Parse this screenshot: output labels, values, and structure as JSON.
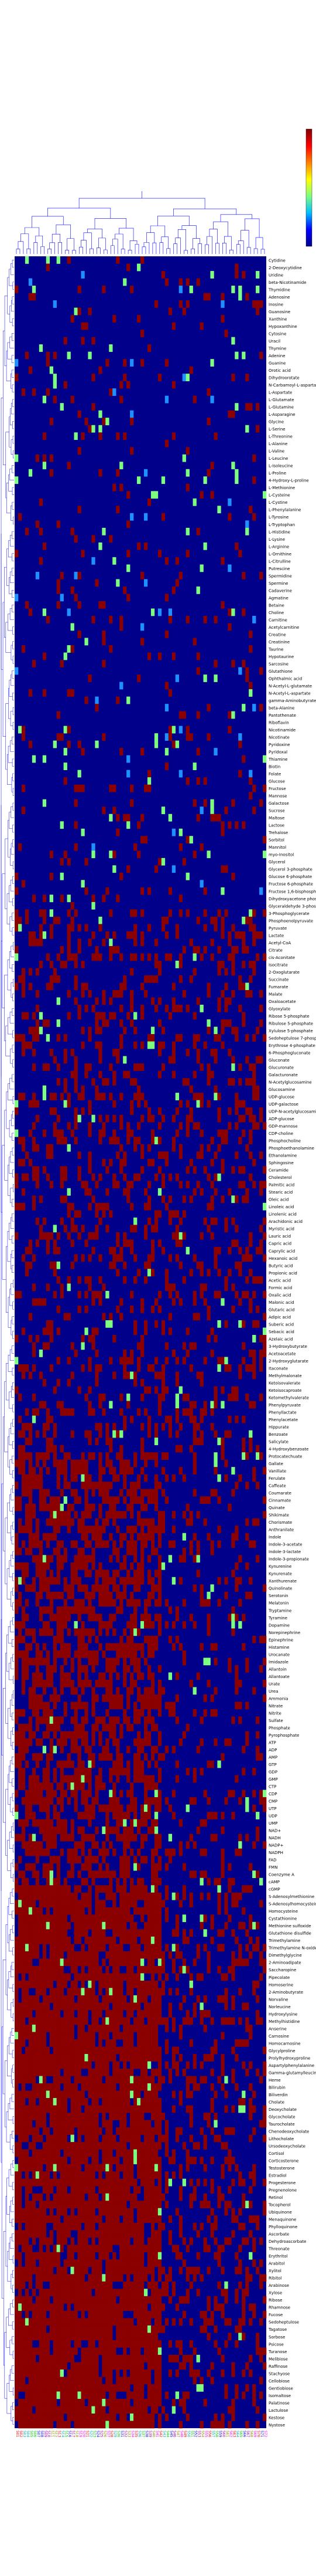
{
  "chart_data": {
    "type": "heatmap",
    "title": "",
    "xlabel": "",
    "ylabel": "",
    "colorscale": [
      "#00008b",
      "#0000ff",
      "#00bfff",
      "#7fff7f",
      "#ffff00",
      "#ff8000",
      "#ff0000",
      "#800000"
    ],
    "colorbar_range": [
      0,
      1
    ],
    "cell_colors": {
      "absent": "#00008b",
      "present": "#8b0000",
      "low": "#1e90ff",
      "mid": "#7fff7f"
    },
    "column_label_colors": [
      "#ff0000",
      "#00aaaa",
      "#00cc00",
      "#0000ff",
      "#aa00aa",
      "#888800",
      "#ff00ff"
    ],
    "row_labels": [
      "Cytidine",
      "2-Deoxycytidine",
      "Uridine",
      "beta-Nicotinamide",
      "Thymidine",
      "Adenosine",
      "Inosine",
      "Guanosine",
      "Xanthine",
      "Hypoxanthine",
      "Cytosine",
      "Uracil",
      "Thymine",
      "Adenine",
      "Guanine",
      "Orotic acid",
      "Dihydroorotate",
      "N-Carbamoyl-L-aspartate",
      "L-Aspartate",
      "L-Glutamate",
      "L-Glutamine",
      "L-Asparagine",
      "Glycine",
      "L-Serine",
      "L-Threonine",
      "L-Alanine",
      "L-Valine",
      "L-Leucine",
      "L-Isoleucine",
      "L-Proline",
      "4-Hydroxy-L-proline",
      "L-Methionine",
      "L-Cysteine",
      "L-Cystine",
      "L-Phenylalanine",
      "L-Tyrosine",
      "L-Tryptophan",
      "L-Histidine",
      "L-Lysine",
      "L-Arginine",
      "L-Ornithine",
      "L-Citrulline",
      "Putrescine",
      "Spermidine",
      "Spermine",
      "Cadaverine",
      "Agmatine",
      "Betaine",
      "Choline",
      "Carnitine",
      "Acetylcarnitine",
      "Creatine",
      "Creatinine",
      "Taurine",
      "Hypotaurine",
      "Sarcosine",
      "Glutathione",
      "Ophthalmic acid",
      "N-Acetyl-L-glutamate",
      "N-Acetyl-L-aspartate",
      "gamma-Aminobutyrate",
      "beta-Alanine",
      "Pantothenate",
      "Riboflavin",
      "Nicotinamide",
      "Nicotinate",
      "Pyridoxine",
      "Pyridoxal",
      "Thiamine",
      "Biotin",
      "Folate",
      "Glucose",
      "Fructose",
      "Mannose",
      "Galactose",
      "Sucrose",
      "Maltose",
      "Lactose",
      "Trehalose",
      "Sorbitol",
      "Mannitol",
      "myo-Inositol",
      "Glycerol",
      "Glycerol 3-phosphate",
      "Glucose 6-phosphate",
      "Fructose 6-phosphate",
      "Fructose 1,6-bisphosphate",
      "Dihydroxyacetone phosphate",
      "Glyceraldehyde 3-phosphate",
      "3-Phosphoglycerate",
      "Phosphoenolpyruvate",
      "Pyruvate",
      "Lactate",
      "Acetyl-CoA",
      "Citrate",
      "cis-Aconitate",
      "Isocitrate",
      "2-Oxoglutarate",
      "Succinate",
      "Fumarate",
      "Malate",
      "Oxaloacetate",
      "Glyoxylate",
      "Ribose 5-phosphate",
      "Ribulose 5-phosphate",
      "Xylulose 5-phosphate",
      "Sedoheptulose 7-phosphate",
      "Erythrose 4-phosphate",
      "6-Phosphogluconate",
      "Gluconate",
      "Glucuronate",
      "Galacturonate",
      "N-Acetylglucosamine",
      "Glucosamine",
      "UDP-glucose",
      "UDP-galactose",
      "UDP-N-acetylglucosamine",
      "ADP-glucose",
      "GDP-mannose",
      "CDP-choline",
      "Phosphocholine",
      "Phosphoethanolamine",
      "Ethanolamine",
      "Sphingosine",
      "Ceramide",
      "Cholesterol",
      "Palmitic acid",
      "Stearic acid",
      "Oleic acid",
      "Linoleic acid",
      "Linolenic acid",
      "Arachidonic acid",
      "Myristic acid",
      "Lauric acid",
      "Capric acid",
      "Caprylic acid",
      "Hexanoic acid",
      "Butyric acid",
      "Propionic acid",
      "Acetic acid",
      "Formic acid",
      "Oxalic acid",
      "Malonic acid",
      "Glutaric acid",
      "Adipic acid",
      "Suberic acid",
      "Sebacic acid",
      "Azelaic acid",
      "3-Hydroxybutyrate",
      "Acetoacetate",
      "2-Hydroxyglutarate",
      "Itaconate",
      "Methylmalonate",
      "Ketoisovalerate",
      "Ketoisocaproate",
      "Ketomethylvalerate",
      "Phenylpyruvate",
      "Phenyllactate",
      "Phenylacetate",
      "Hippurate",
      "Benzoate",
      "Salicylate",
      "4-Hydroxybenzoate",
      "Protocatechuate",
      "Gallate",
      "Vanillate",
      "Ferulate",
      "Caffeate",
      "Coumarate",
      "Cinnamate",
      "Quinate",
      "Shikimate",
      "Chorismate",
      "Anthranilate",
      "Indole",
      "Indole-3-acetate",
      "Indole-3-lactate",
      "Indole-3-propionate",
      "Kynurenine",
      "Kynurenate",
      "Xanthurenate",
      "Quinolinate",
      "Serotonin",
      "Melatonin",
      "Tryptamine",
      "Tyramine",
      "Dopamine",
      "Norepinephrine",
      "Epinephrine",
      "Histamine",
      "Urocanate",
      "Imidazole",
      "Allantoin",
      "Allantoate",
      "Urate",
      "Urea",
      "Ammonia",
      "Nitrate",
      "Nitrite",
      "Sulfate",
      "Phosphate",
      "Pyrophosphate",
      "ATP",
      "ADP",
      "AMP",
      "GTP",
      "GDP",
      "GMP",
      "CTP",
      "CDP",
      "CMP",
      "UTP",
      "UDP",
      "UMP",
      "NAD+",
      "NADH",
      "NADP+",
      "NADPH",
      "FAD",
      "FMN",
      "Coenzyme A",
      "cAMP",
      "cGMP",
      "S-Adenosylmethionine",
      "S-Adenosylhomocysteine",
      "Homocysteine",
      "Cystathionine",
      "Methionine sulfoxide",
      "Glutathione disulfide",
      "Trimethylamine",
      "Trimethylamine N-oxide",
      "Dimethylglycine",
      "2-Aminoadipate",
      "Saccharopine",
      "Pipecolate",
      "Homoserine",
      "2-Aminobutyrate",
      "Norvaline",
      "Norleucine",
      "Hydroxylysine",
      "Methylhistidine",
      "Anserine",
      "Carnosine",
      "Homocarnosine",
      "Glycylproline",
      "Prolylhydroxyproline",
      "Aspartylphenylalanine",
      "Gamma-glutamylleucine",
      "Heme",
      "Bilirubin",
      "Biliverdin",
      "Cholate",
      "Deoxycholate",
      "Glycocholate",
      "Taurocholate",
      "Chenodeoxycholate",
      "Lithocholate",
      "Ursodeoxycholate",
      "Cortisol",
      "Corticosterone",
      "Testosterone",
      "Estradiol",
      "Progesterone",
      "Pregnenolone",
      "Retinol",
      "Tocopherol",
      "Ubiquinone",
      "Menaquinone",
      "Phylloquinone",
      "Ascorbate",
      "Dehydroascorbate",
      "Threonate",
      "Erythritol",
      "Arabitol",
      "Xylitol",
      "Ribitol",
      "Arabinose",
      "Xylose",
      "Ribose",
      "Rhamnose",
      "Fucose",
      "Sedoheptulose",
      "Tagatose",
      "Sorbose",
      "Psicose",
      "Turanose",
      "Melibiose",
      "Raffinose",
      "Stachyose",
      "Cellobiose",
      "Gentiobiose",
      "Isomaltose",
      "Palatinose",
      "Lactulose",
      "Kestose",
      "Nystose"
    ],
    "n_cols": 72,
    "column_labels": [
      "S01",
      "S02",
      "S03",
      "S04",
      "S05",
      "S06",
      "S07",
      "S08",
      "S09",
      "S10",
      "S11",
      "S12",
      "S13",
      "S14",
      "S15",
      "S16",
      "S17",
      "S18",
      "S19",
      "S20",
      "S21",
      "S22",
      "S23",
      "S24",
      "S25",
      "S26",
      "S27",
      "S28",
      "S29",
      "S30",
      "S31",
      "S32",
      "S33",
      "S34",
      "S35",
      "S36",
      "S37",
      "S38",
      "S39",
      "S40",
      "S41",
      "S42",
      "S43",
      "S44",
      "S45",
      "S46",
      "S47",
      "S48",
      "S49",
      "S50",
      "S51",
      "S52",
      "S53",
      "S54",
      "S55",
      "S56",
      "S57",
      "S58",
      "S59",
      "S60",
      "S61",
      "S62",
      "S63",
      "S64",
      "S65",
      "S66",
      "S67",
      "S68",
      "S69",
      "S70",
      "S71",
      "S72"
    ],
    "column_groups": [
      0,
      0,
      1,
      1,
      2,
      2,
      3,
      3,
      4,
      4,
      5,
      5,
      0,
      1,
      2,
      3,
      4,
      5,
      6,
      6,
      0,
      1,
      2,
      3,
      4,
      5,
      6,
      0,
      1,
      2,
      3,
      4,
      5,
      6,
      0,
      1,
      2,
      3,
      4,
      5,
      6,
      0,
      1,
      2,
      3,
      4,
      5,
      6,
      0,
      1,
      2,
      3,
      4,
      5,
      6,
      0,
      1,
      2,
      3,
      4,
      5,
      6,
      0,
      1,
      2,
      3,
      4,
      5,
      6,
      0,
      3,
      6
    ],
    "seed": 7
  }
}
